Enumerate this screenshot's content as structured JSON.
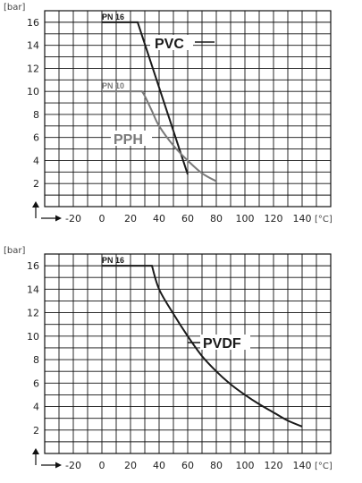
{
  "chart_data": [
    {
      "type": "line",
      "ylabel": "[bar]",
      "xlabel": "[°C]",
      "x_ticks": [
        -20,
        0,
        20,
        40,
        60,
        80,
        100,
        120,
        140
      ],
      "y_ticks": [
        2,
        4,
        6,
        8,
        10,
        12,
        14,
        16
      ],
      "xlim": [
        -40,
        160
      ],
      "ylim": [
        0,
        17
      ],
      "grid": true,
      "series": [
        {
          "name": "PVC",
          "annotation": "PN 16",
          "color": "#1a1a1a",
          "x": [
            0,
            25,
            60
          ],
          "y": [
            16,
            16,
            2.8
          ]
        },
        {
          "name": "PPH",
          "annotation": "PN 10",
          "color": "#7a7a7a",
          "x": [
            0,
            28,
            30,
            35,
            40,
            50,
            60,
            70,
            80
          ],
          "y": [
            10,
            10,
            9.6,
            8.3,
            7.0,
            5.3,
            4.0,
            2.9,
            2.2
          ]
        }
      ]
    },
    {
      "type": "line",
      "ylabel": "[bar]",
      "xlabel": "[°C]",
      "x_ticks": [
        -20,
        0,
        20,
        40,
        60,
        80,
        100,
        120,
        140
      ],
      "y_ticks": [
        2,
        4,
        6,
        8,
        10,
        12,
        14,
        16
      ],
      "xlim": [
        -40,
        160
      ],
      "ylim": [
        0,
        17
      ],
      "grid": true,
      "series": [
        {
          "name": "PVDF",
          "annotation": "PN 16",
          "color": "#1a1a1a",
          "x": [
            0,
            35,
            40,
            50,
            60,
            70,
            80,
            90,
            100,
            110,
            120,
            130,
            140
          ],
          "y": [
            16,
            16,
            14,
            11.9,
            10,
            8.3,
            7.0,
            5.9,
            5.0,
            4.2,
            3.5,
            2.8,
            2.3
          ]
        }
      ]
    }
  ]
}
